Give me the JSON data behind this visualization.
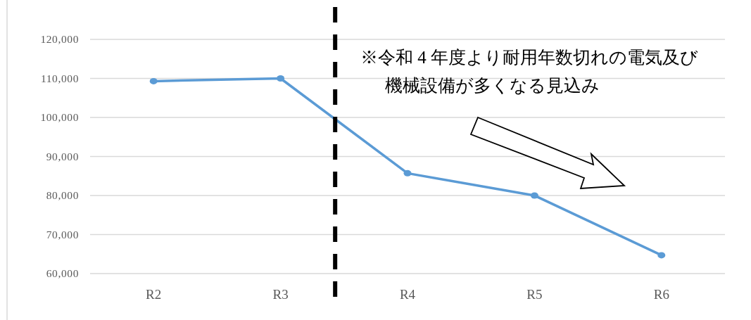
{
  "chart_data": {
    "type": "line",
    "categories": [
      "R2",
      "R3",
      "R4",
      "R5",
      "R6"
    ],
    "series": [
      {
        "color": "#5b9bd5",
        "values": [
          109300,
          110000,
          85700,
          80000,
          64700
        ]
      }
    ],
    "ylim": [
      60000,
      120000
    ],
    "yticks": [
      {
        "value": 60000,
        "label": "60,000"
      },
      {
        "value": 70000,
        "label": "70,000"
      },
      {
        "value": 80000,
        "label": "80,000"
      },
      {
        "value": 90000,
        "label": "90,000"
      },
      {
        "value": 100000,
        "label": "100,000"
      },
      {
        "value": 110000,
        "label": "110,000"
      },
      {
        "value": 120000,
        "label": "120,000"
      }
    ],
    "grid": "y",
    "marker": "circle",
    "line_style": "solid",
    "annotations": [
      "※令和 4 年度より耐用年数切れの電気及び機械設備が多くなる見込み"
    ]
  }
}
